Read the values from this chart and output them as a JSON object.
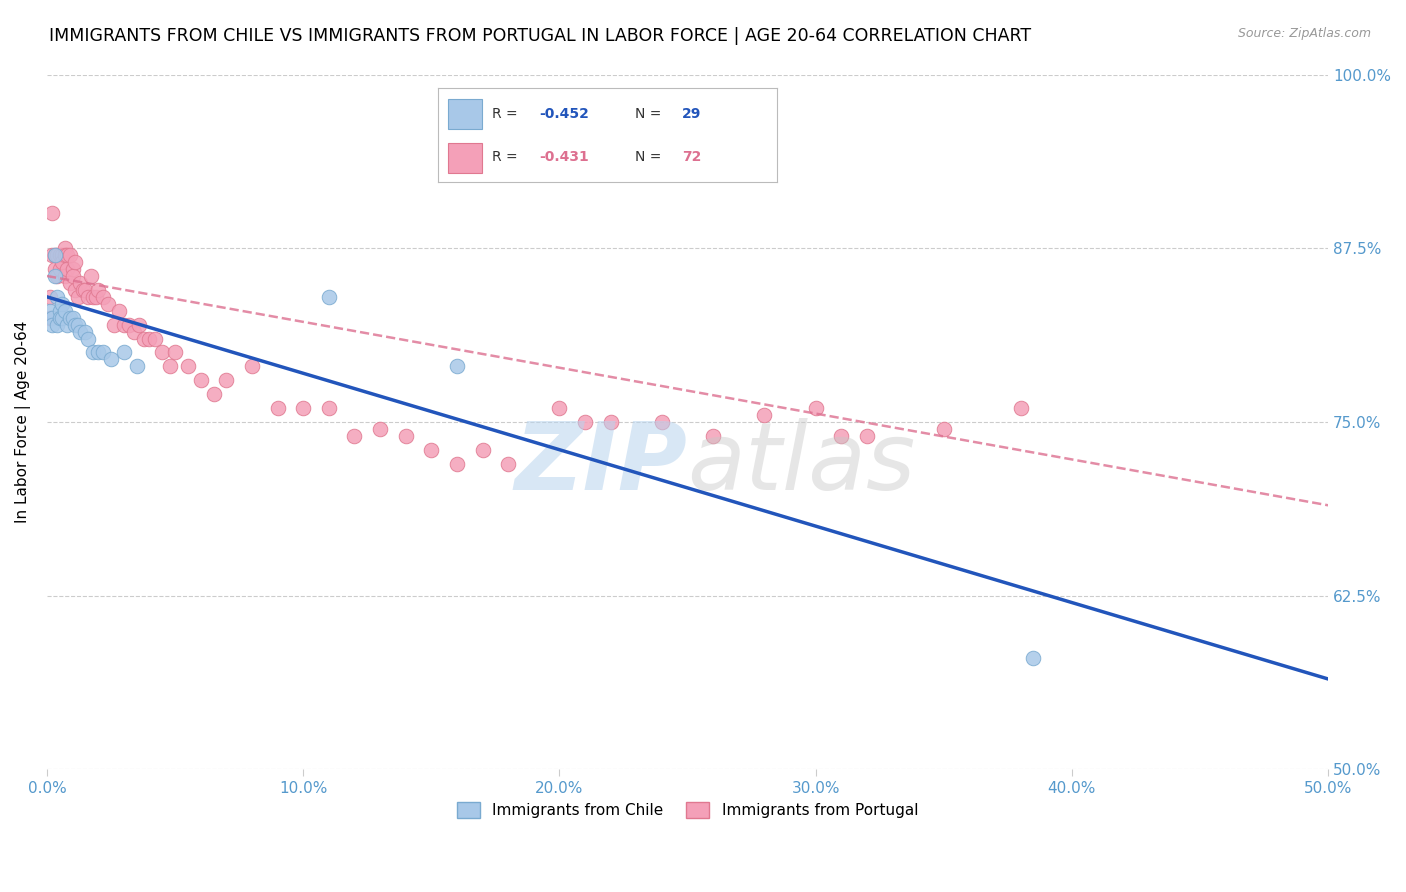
{
  "title": "IMMIGRANTS FROM CHILE VS IMMIGRANTS FROM PORTUGAL IN LABOR FORCE | AGE 20-64 CORRELATION CHART",
  "source": "Source: ZipAtlas.com",
  "ylabel_left": "In Labor Force | Age 20-64",
  "xlim": [
    0.0,
    0.5
  ],
  "ylim": [
    0.5,
    1.0
  ],
  "chile_color": "#a8c8e8",
  "chile_edge_color": "#7aaad0",
  "portugal_color": "#f4a0b8",
  "portugal_edge_color": "#e07890",
  "chile_R": -0.452,
  "chile_N": 29,
  "portugal_R": -0.431,
  "portugal_N": 72,
  "legend_label_chile": "Immigrants from Chile",
  "legend_label_portugal": "Immigrants from Portugal",
  "chile_line_color": "#2255bb",
  "portugal_line_color": "#dd7090",
  "watermark_zip_color": "#b8d4ee",
  "watermark_atlas_color": "#c8c8c8",
  "grid_color": "#cccccc",
  "background_color": "#ffffff",
  "title_fontsize": 12.5,
  "axis_label_fontsize": 11,
  "tick_fontsize": 11,
  "right_tick_color": "#5599cc",
  "bottom_tick_color": "#5599cc",
  "source_color": "#999999",
  "chile_scatter_x": [
    0.001,
    0.002,
    0.002,
    0.003,
    0.003,
    0.004,
    0.004,
    0.005,
    0.005,
    0.006,
    0.006,
    0.007,
    0.008,
    0.009,
    0.01,
    0.011,
    0.012,
    0.013,
    0.015,
    0.016,
    0.018,
    0.02,
    0.022,
    0.025,
    0.03,
    0.035,
    0.11,
    0.16,
    0.385
  ],
  "chile_scatter_y": [
    0.83,
    0.825,
    0.82,
    0.87,
    0.855,
    0.84,
    0.82,
    0.83,
    0.825,
    0.835,
    0.825,
    0.83,
    0.82,
    0.825,
    0.825,
    0.82,
    0.82,
    0.815,
    0.815,
    0.81,
    0.8,
    0.8,
    0.8,
    0.795,
    0.8,
    0.79,
    0.84,
    0.79,
    0.58
  ],
  "portugal_scatter_x": [
    0.001,
    0.001,
    0.002,
    0.002,
    0.003,
    0.003,
    0.004,
    0.004,
    0.005,
    0.005,
    0.006,
    0.006,
    0.007,
    0.007,
    0.007,
    0.008,
    0.008,
    0.009,
    0.009,
    0.01,
    0.01,
    0.011,
    0.011,
    0.012,
    0.013,
    0.014,
    0.015,
    0.016,
    0.017,
    0.018,
    0.019,
    0.02,
    0.022,
    0.024,
    0.026,
    0.028,
    0.03,
    0.032,
    0.034,
    0.036,
    0.038,
    0.04,
    0.042,
    0.045,
    0.048,
    0.05,
    0.055,
    0.06,
    0.065,
    0.07,
    0.08,
    0.09,
    0.1,
    0.11,
    0.12,
    0.13,
    0.14,
    0.15,
    0.16,
    0.17,
    0.18,
    0.2,
    0.21,
    0.22,
    0.24,
    0.26,
    0.28,
    0.3,
    0.31,
    0.32,
    0.35,
    0.38
  ],
  "portugal_scatter_y": [
    0.84,
    0.825,
    0.9,
    0.87,
    0.87,
    0.86,
    0.87,
    0.855,
    0.87,
    0.86,
    0.87,
    0.865,
    0.875,
    0.87,
    0.855,
    0.86,
    0.87,
    0.87,
    0.85,
    0.86,
    0.855,
    0.865,
    0.845,
    0.84,
    0.85,
    0.845,
    0.845,
    0.84,
    0.855,
    0.84,
    0.84,
    0.845,
    0.84,
    0.835,
    0.82,
    0.83,
    0.82,
    0.82,
    0.815,
    0.82,
    0.81,
    0.81,
    0.81,
    0.8,
    0.79,
    0.8,
    0.79,
    0.78,
    0.77,
    0.78,
    0.79,
    0.76,
    0.76,
    0.76,
    0.74,
    0.745,
    0.74,
    0.73,
    0.72,
    0.73,
    0.72,
    0.76,
    0.75,
    0.75,
    0.75,
    0.74,
    0.755,
    0.76,
    0.74,
    0.74,
    0.745,
    0.76
  ]
}
